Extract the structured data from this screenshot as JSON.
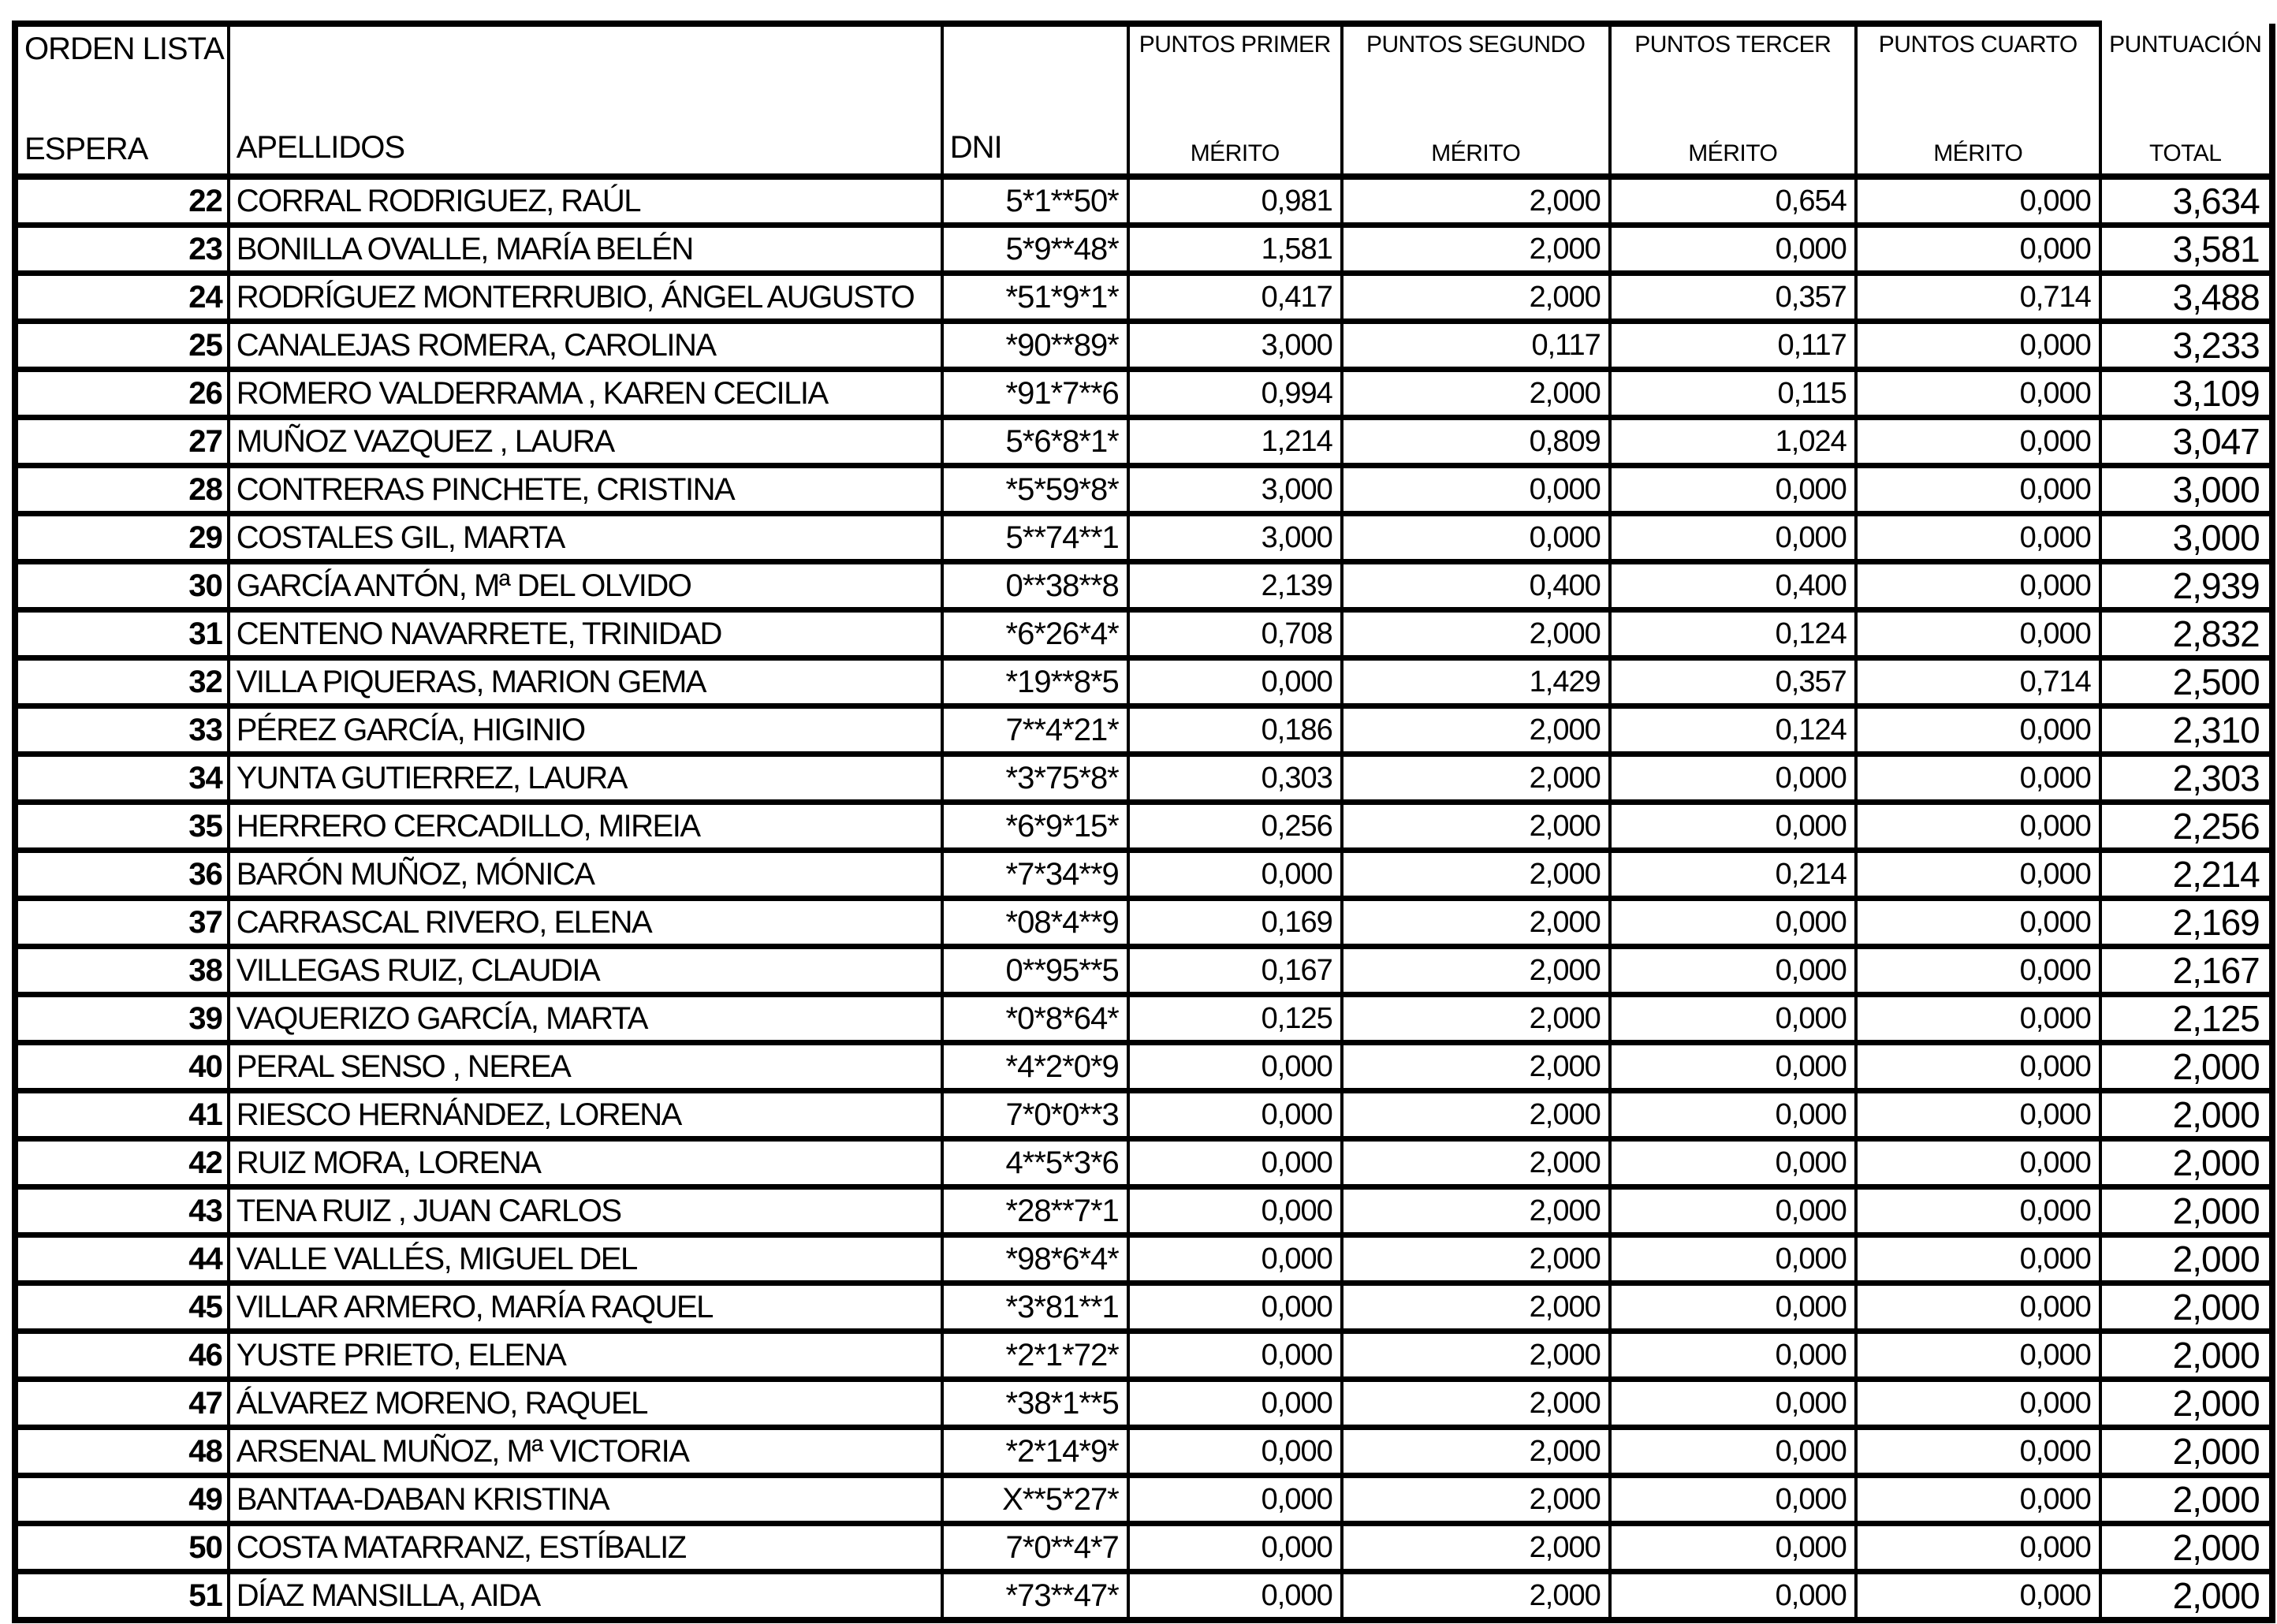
{
  "colors": {
    "border": "#000000",
    "text": "#000000",
    "background": "#ffffff"
  },
  "header": {
    "orden_lista_top": "ORDEN LISTA",
    "orden_lista_bottom": "ESPERA",
    "apellidos": "APELLIDOS",
    "dni": "DNI",
    "puntos": [
      {
        "top": "PUNTOS PRIMER",
        "bottom": "MÉRITO"
      },
      {
        "top": "PUNTOS SEGUNDO",
        "bottom": "MÉRITO"
      },
      {
        "top": "PUNTOS TERCER",
        "bottom": "MÉRITO"
      },
      {
        "top": "PUNTOS CUARTO",
        "bottom": "MÉRITO"
      }
    ],
    "puntuacion_top": "PUNTUACIÓN",
    "puntuacion_bottom": "TOTAL"
  },
  "rows": [
    {
      "orden": "22",
      "apellidos": "CORRAL RODRIGUEZ, RAÚL",
      "dni": "5*1**50*",
      "puntos_primer": "0,981",
      "puntos_segundo": "2,000",
      "puntos_tercer": "0,654",
      "puntos_cuarto": "0,000",
      "puntuacion_total": "3,634"
    },
    {
      "orden": "23",
      "apellidos": "BONILLA OVALLE, MARÍA BELÉN",
      "dni": "5*9**48*",
      "puntos_primer": "1,581",
      "puntos_segundo": "2,000",
      "puntos_tercer": "0,000",
      "puntos_cuarto": "0,000",
      "puntuacion_total": "3,581"
    },
    {
      "orden": "24",
      "apellidos": "RODRÍGUEZ MONTERRUBIO, ÁNGEL AUGUSTO",
      "dni": "*51*9*1*",
      "puntos_primer": "0,417",
      "puntos_segundo": "2,000",
      "puntos_tercer": "0,357",
      "puntos_cuarto": "0,714",
      "puntuacion_total": "3,488"
    },
    {
      "orden": "25",
      "apellidos": "CANALEJAS ROMERA, CAROLINA",
      "dni": "*90**89*",
      "puntos_primer": "3,000",
      "puntos_segundo": "0,117",
      "puntos_tercer": "0,117",
      "puntos_cuarto": "0,000",
      "puntuacion_total": "3,233"
    },
    {
      "orden": "26",
      "apellidos": "ROMERO VALDERRAMA , KAREN CECILIA",
      "dni": "*91*7**6",
      "puntos_primer": "0,994",
      "puntos_segundo": "2,000",
      "puntos_tercer": "0,115",
      "puntos_cuarto": "0,000",
      "puntuacion_total": "3,109"
    },
    {
      "orden": "27",
      "apellidos": "MUÑOZ VAZQUEZ , LAURA",
      "dni": "5*6*8*1*",
      "puntos_primer": "1,214",
      "puntos_segundo": "0,809",
      "puntos_tercer": "1,024",
      "puntos_cuarto": "0,000",
      "puntuacion_total": "3,047"
    },
    {
      "orden": "28",
      "apellidos": "CONTRERAS PINCHETE, CRISTINA",
      "dni": "*5*59*8*",
      "puntos_primer": "3,000",
      "puntos_segundo": "0,000",
      "puntos_tercer": "0,000",
      "puntos_cuarto": "0,000",
      "puntuacion_total": "3,000"
    },
    {
      "orden": "29",
      "apellidos": "COSTALES GIL, MARTA",
      "dni": "5**74**1",
      "puntos_primer": "3,000",
      "puntos_segundo": "0,000",
      "puntos_tercer": "0,000",
      "puntos_cuarto": "0,000",
      "puntuacion_total": "3,000"
    },
    {
      "orden": "30",
      "apellidos": "GARCÍA ANTÓN, Mª DEL OLVIDO",
      "dni": "0**38**8",
      "puntos_primer": "2,139",
      "puntos_segundo": "0,400",
      "puntos_tercer": "0,400",
      "puntos_cuarto": "0,000",
      "puntuacion_total": "2,939"
    },
    {
      "orden": "31",
      "apellidos": "CENTENO NAVARRETE, TRINIDAD",
      "dni": "*6*26*4*",
      "puntos_primer": "0,708",
      "puntos_segundo": "2,000",
      "puntos_tercer": "0,124",
      "puntos_cuarto": "0,000",
      "puntuacion_total": "2,832"
    },
    {
      "orden": "32",
      "apellidos": "VILLA PIQUERAS, MARION GEMA",
      "dni": "*19**8*5",
      "puntos_primer": "0,000",
      "puntos_segundo": "1,429",
      "puntos_tercer": "0,357",
      "puntos_cuarto": "0,714",
      "puntuacion_total": "2,500"
    },
    {
      "orden": "33",
      "apellidos": "PÉREZ GARCÍA, HIGINIO",
      "dni": "7**4*21*",
      "puntos_primer": "0,186",
      "puntos_segundo": "2,000",
      "puntos_tercer": "0,124",
      "puntos_cuarto": "0,000",
      "puntuacion_total": "2,310"
    },
    {
      "orden": "34",
      "apellidos": "YUNTA GUTIERREZ, LAURA",
      "dni": "*3*75*8*",
      "puntos_primer": "0,303",
      "puntos_segundo": "2,000",
      "puntos_tercer": "0,000",
      "puntos_cuarto": "0,000",
      "puntuacion_total": "2,303"
    },
    {
      "orden": "35",
      "apellidos": "HERRERO CERCADILLO, MIREIA",
      "dni": "*6*9*15*",
      "puntos_primer": "0,256",
      "puntos_segundo": "2,000",
      "puntos_tercer": "0,000",
      "puntos_cuarto": "0,000",
      "puntuacion_total": "2,256"
    },
    {
      "orden": "36",
      "apellidos": "BARÓN MUÑOZ, MÓNICA",
      "dni": "*7*34**9",
      "puntos_primer": "0,000",
      "puntos_segundo": "2,000",
      "puntos_tercer": "0,214",
      "puntos_cuarto": "0,000",
      "puntuacion_total": "2,214"
    },
    {
      "orden": "37",
      "apellidos": "CARRASCAL RIVERO, ELENA",
      "dni": "*08*4**9",
      "puntos_primer": "0,169",
      "puntos_segundo": "2,000",
      "puntos_tercer": "0,000",
      "puntos_cuarto": "0,000",
      "puntuacion_total": "2,169"
    },
    {
      "orden": "38",
      "apellidos": "VILLEGAS RUIZ, CLAUDIA",
      "dni": "0**95**5",
      "puntos_primer": "0,167",
      "puntos_segundo": "2,000",
      "puntos_tercer": "0,000",
      "puntos_cuarto": "0,000",
      "puntuacion_total": "2,167"
    },
    {
      "orden": "39",
      "apellidos": "VAQUERIZO GARCÍA, MARTA",
      "dni": "*0*8*64*",
      "puntos_primer": "0,125",
      "puntos_segundo": "2,000",
      "puntos_tercer": "0,000",
      "puntos_cuarto": "0,000",
      "puntuacion_total": "2,125"
    },
    {
      "orden": "40",
      "apellidos": "PERAL SENSO , NEREA",
      "dni": "*4*2*0*9",
      "puntos_primer": "0,000",
      "puntos_segundo": "2,000",
      "puntos_tercer": "0,000",
      "puntos_cuarto": "0,000",
      "puntuacion_total": "2,000"
    },
    {
      "orden": "41",
      "apellidos": "RIESCO HERNÁNDEZ, LORENA",
      "dni": "7*0*0**3",
      "puntos_primer": "0,000",
      "puntos_segundo": "2,000",
      "puntos_tercer": "0,000",
      "puntos_cuarto": "0,000",
      "puntuacion_total": "2,000"
    },
    {
      "orden": "42",
      "apellidos": "RUIZ MORA, LORENA",
      "dni": "4**5*3*6",
      "puntos_primer": "0,000",
      "puntos_segundo": "2,000",
      "puntos_tercer": "0,000",
      "puntos_cuarto": "0,000",
      "puntuacion_total": "2,000"
    },
    {
      "orden": "43",
      "apellidos": "TENA RUIZ , JUAN CARLOS",
      "dni": "*28**7*1",
      "puntos_primer": "0,000",
      "puntos_segundo": "2,000",
      "puntos_tercer": "0,000",
      "puntos_cuarto": "0,000",
      "puntuacion_total": "2,000"
    },
    {
      "orden": "44",
      "apellidos": "VALLE VALLÉS, MIGUEL DEL",
      "dni": "*98*6*4*",
      "puntos_primer": "0,000",
      "puntos_segundo": "2,000",
      "puntos_tercer": "0,000",
      "puntos_cuarto": "0,000",
      "puntuacion_total": "2,000"
    },
    {
      "orden": "45",
      "apellidos": "VILLAR ARMERO, MARÍA RAQUEL",
      "dni": "*3*81**1",
      "puntos_primer": "0,000",
      "puntos_segundo": "2,000",
      "puntos_tercer": "0,000",
      "puntos_cuarto": "0,000",
      "puntuacion_total": "2,000"
    },
    {
      "orden": "46",
      "apellidos": "YUSTE PRIETO, ELENA",
      "dni": "*2*1*72*",
      "puntos_primer": "0,000",
      "puntos_segundo": "2,000",
      "puntos_tercer": "0,000",
      "puntos_cuarto": "0,000",
      "puntuacion_total": "2,000"
    },
    {
      "orden": "47",
      "apellidos": "ÁLVAREZ MORENO, RAQUEL",
      "dni": "*38*1**5",
      "puntos_primer": "0,000",
      "puntos_segundo": "2,000",
      "puntos_tercer": "0,000",
      "puntos_cuarto": "0,000",
      "puntuacion_total": "2,000"
    },
    {
      "orden": "48",
      "apellidos": "ARSENAL MUÑOZ, Mª VICTORIA",
      "dni": "*2*14*9*",
      "puntos_primer": "0,000",
      "puntos_segundo": "2,000",
      "puntos_tercer": "0,000",
      "puntos_cuarto": "0,000",
      "puntuacion_total": "2,000"
    },
    {
      "orden": "49",
      "apellidos": "BANTAA-DABAN KRISTINA",
      "dni": "X**5*27*",
      "puntos_primer": "0,000",
      "puntos_segundo": "2,000",
      "puntos_tercer": "0,000",
      "puntos_cuarto": "0,000",
      "puntuacion_total": "2,000"
    },
    {
      "orden": "50",
      "apellidos": "COSTA MATARRANZ, ESTÍBALIZ",
      "dni": "7*0**4*7",
      "puntos_primer": "0,000",
      "puntos_segundo": "2,000",
      "puntos_tercer": "0,000",
      "puntos_cuarto": "0,000",
      "puntuacion_total": "2,000"
    },
    {
      "orden": "51",
      "apellidos": "DÍAZ MANSILLA, AIDA",
      "dni": "*73**47*",
      "puntos_primer": "0,000",
      "puntos_segundo": "2,000",
      "puntos_tercer": "0,000",
      "puntos_cuarto": "0,000",
      "puntuacion_total": "2,000"
    }
  ]
}
